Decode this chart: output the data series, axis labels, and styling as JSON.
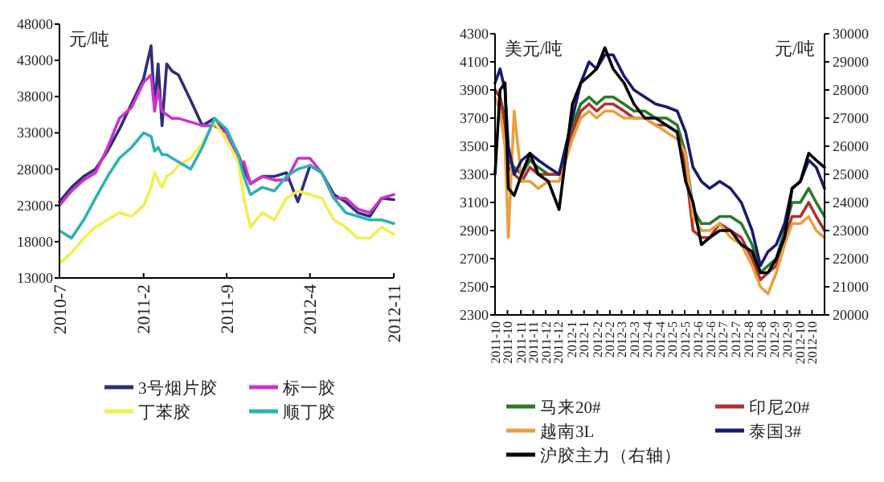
{
  "chart_data": [
    {
      "type": "line",
      "ylabel": "元/吨",
      "legend": "bottom",
      "x": [
        "2010-07-01",
        "2010-08-01",
        "2010-09-01",
        "2010-10-01",
        "2010-11-01",
        "2010-12-01",
        "2011-01-01",
        "2011-02-01",
        "2011-02-20",
        "2011-03-01",
        "2011-03-10",
        "2011-03-20",
        "2011-04-01",
        "2011-04-15",
        "2011-05-01",
        "2011-06-01",
        "2011-07-01",
        "2011-08-01",
        "2011-09-01",
        "2011-10-01",
        "2011-10-15",
        "2011-11-01",
        "2011-12-01",
        "2012-01-01",
        "2012-02-01",
        "2012-03-01",
        "2012-04-01",
        "2012-05-01",
        "2012-06-01",
        "2012-07-01",
        "2012-08-01",
        "2012-09-01",
        "2012-10-01",
        "2012-11-01"
      ],
      "xlim": [
        "2010-07-01",
        "2012-11-01"
      ],
      "xticks": [
        {
          "value": "2010-07-01",
          "label": "2010-7"
        },
        {
          "value": "2011-02-01",
          "label": "2011-2"
        },
        {
          "value": "2011-09-01",
          "label": "2011-9"
        },
        {
          "value": "2012-04-01",
          "label": "2012-4"
        },
        {
          "value": "2012-11-01",
          "label": "2012-11"
        }
      ],
      "ylim": [
        13000,
        48000
      ],
      "yticks": [
        13000,
        18000,
        23000,
        28000,
        33000,
        38000,
        43000,
        48000
      ],
      "series": [
        {
          "name": "3号烟片胶",
          "color": "#2e2e78",
          "values": [
            23500,
            25500,
            27000,
            28000,
            30500,
            33500,
            37000,
            40500,
            45000,
            36500,
            42500,
            34000,
            42500,
            41500,
            41000,
            37500,
            34000,
            35000,
            33000,
            30000,
            28000,
            26000,
            27000,
            27000,
            27500,
            23500,
            28500,
            27500,
            24500,
            23500,
            22000,
            21500,
            24000,
            23800
          ]
        },
        {
          "name": "标一胶",
          "color": "#cc33cc",
          "values": [
            23000,
            25000,
            26500,
            27500,
            31000,
            35000,
            36500,
            40000,
            41000,
            36000,
            39000,
            36000,
            35500,
            35000,
            35000,
            34500,
            34000,
            34000,
            33000,
            29000,
            29000,
            26000,
            27000,
            26500,
            26500,
            29500,
            29500,
            27500,
            24000,
            24000,
            22500,
            22000,
            24000,
            24500
          ]
        },
        {
          "name": "丁苯胶",
          "color": "#f0f050",
          "values": [
            15000,
            16500,
            18500,
            20000,
            21000,
            22000,
            21500,
            23000,
            25500,
            27500,
            26500,
            25500,
            27000,
            27500,
            28500,
            29500,
            31500,
            34500,
            32000,
            29000,
            24000,
            20000,
            22000,
            21000,
            24000,
            25000,
            24500,
            24000,
            21000,
            20000,
            18500,
            18500,
            20000,
            19000
          ]
        },
        {
          "name": "顺丁胶",
          "color": "#33b0b0",
          "values": [
            19500,
            18500,
            21000,
            24000,
            27000,
            29500,
            31000,
            33000,
            32500,
            30500,
            31000,
            30000,
            30000,
            29500,
            29000,
            28000,
            31000,
            35000,
            33500,
            30000,
            27000,
            24500,
            25500,
            25000,
            27000,
            28000,
            28500,
            27500,
            24000,
            22000,
            21500,
            21000,
            21000,
            20500
          ]
        }
      ]
    },
    {
      "type": "line",
      "ylabel": "美元/吨",
      "y2label": "元/吨",
      "legend": "bottom",
      "x": [
        "2011-10-01",
        "2011-10-07",
        "2011-10-13",
        "2011-10-17",
        "2011-10-24",
        "2011-11-02",
        "2011-11-12",
        "2011-11-22",
        "2011-12-04",
        "2011-12-17",
        "2012-01-02",
        "2012-01-12",
        "2012-01-22",
        "2012-01-31",
        "2012-02-10",
        "2012-02-20",
        "2012-03-04",
        "2012-03-16",
        "2012-03-29",
        "2012-04-11",
        "2012-04-24",
        "2012-05-07",
        "2012-05-17",
        "2012-05-26",
        "2012-06-05",
        "2012-06-15",
        "2012-06-27",
        "2012-07-10",
        "2012-07-23",
        "2012-08-05",
        "2012-08-15",
        "2012-08-24",
        "2012-09-03",
        "2012-09-13",
        "2012-09-22",
        "2012-10-02",
        "2012-10-12",
        "2012-10-21",
        "2012-10-31"
      ],
      "xlim": [
        "2011-10-01",
        "2012-10-31"
      ],
      "xticks": [
        {
          "value": "2011-10-01",
          "label": "2011-10"
        },
        {
          "value": "2011-10-16",
          "label": "2011-10"
        },
        {
          "value": "2011-11-01",
          "label": "2011-11"
        },
        {
          "value": "2011-11-16",
          "label": "2011-11"
        },
        {
          "value": "2011-12-01",
          "label": "2011-12"
        },
        {
          "value": "2011-12-16",
          "label": "2011-12"
        },
        {
          "value": "2012-01-01",
          "label": "2012-1"
        },
        {
          "value": "2012-01-16",
          "label": "2012-1"
        },
        {
          "value": "2012-02-01",
          "label": "2012-2"
        },
        {
          "value": "2012-02-16",
          "label": "2012-2"
        },
        {
          "value": "2012-03-01",
          "label": "2012-3"
        },
        {
          "value": "2012-03-16",
          "label": "2012-3"
        },
        {
          "value": "2012-04-01",
          "label": "2012-4"
        },
        {
          "value": "2012-04-16",
          "label": "2012-4"
        },
        {
          "value": "2012-05-01",
          "label": "2012-5"
        },
        {
          "value": "2012-05-16",
          "label": "2012-5"
        },
        {
          "value": "2012-06-01",
          "label": "2012-6"
        },
        {
          "value": "2012-06-16",
          "label": "2012-6"
        },
        {
          "value": "2012-07-01",
          "label": "2012-7"
        },
        {
          "value": "2012-07-16",
          "label": "2012-7"
        },
        {
          "value": "2012-08-01",
          "label": "2012-8"
        },
        {
          "value": "2012-08-16",
          "label": "2012-8"
        },
        {
          "value": "2012-09-01",
          "label": "2012-9"
        },
        {
          "value": "2012-09-16",
          "label": "2012-9"
        },
        {
          "value": "2012-10-01",
          "label": "2012-10"
        },
        {
          "value": "2012-10-16",
          "label": "2012-10"
        }
      ],
      "ylim": [
        2300,
        4300
      ],
      "yticks": [
        2300,
        2500,
        2700,
        2900,
        3100,
        3300,
        3500,
        3700,
        3900,
        4100,
        4300
      ],
      "y2lim": [
        20000,
        30000
      ],
      "y2ticks": [
        20000,
        21000,
        22000,
        23000,
        24000,
        25000,
        26000,
        27000,
        28000,
        29000,
        30000
      ],
      "series": [
        {
          "name": "马来20#",
          "color": "#2a7a2a",
          "values": [
            3900,
            3850,
            3700,
            3400,
            3350,
            3300,
            3400,
            3350,
            3300,
            3300,
            3650,
            3800,
            3850,
            3800,
            3850,
            3850,
            3800,
            3750,
            3750,
            3700,
            3700,
            3650,
            3450,
            3050,
            2950,
            2950,
            3000,
            3000,
            2950,
            2800,
            2600,
            2650,
            2700,
            2900,
            3100,
            3100,
            3200,
            3100,
            3000
          ]
        },
        {
          "name": "印尼20#",
          "color": "#b03030",
          "values": [
            3900,
            3850,
            3650,
            3350,
            3300,
            3250,
            3350,
            3300,
            3300,
            3300,
            3600,
            3750,
            3800,
            3750,
            3800,
            3800,
            3750,
            3700,
            3700,
            3650,
            3650,
            3600,
            3350,
            2900,
            2850,
            2850,
            2950,
            2900,
            2850,
            2700,
            2550,
            2600,
            2650,
            2850,
            3000,
            3000,
            3100,
            3000,
            2900
          ]
        },
        {
          "name": "越南3L",
          "color": "#e8a040",
          "values": [
            3850,
            3750,
            3500,
            2850,
            3750,
            3250,
            3250,
            3200,
            3250,
            3250,
            3550,
            3700,
            3750,
            3700,
            3750,
            3750,
            3700,
            3700,
            3700,
            3650,
            3600,
            3550,
            3450,
            3000,
            2900,
            2900,
            2950,
            2850,
            2800,
            2650,
            2500,
            2450,
            2600,
            2800,
            2950,
            2950,
            3000,
            2900,
            2850
          ]
        },
        {
          "name": "泰国3#",
          "color": "#1a1a70",
          "values": [
            3950,
            4050,
            3900,
            3500,
            3300,
            3400,
            3450,
            3400,
            3350,
            3300,
            3700,
            3950,
            4100,
            4050,
            4150,
            4150,
            4000,
            3900,
            3850,
            3800,
            3780,
            3750,
            3600,
            3350,
            3250,
            3200,
            3250,
            3200,
            3100,
            2900,
            2650,
            2750,
            2800,
            2950,
            3200,
            3250,
            3400,
            3350,
            3200
          ]
        },
        {
          "name": "沪胶主力（右轴）",
          "color": "#000000",
          "axis": "y2",
          "values": [
            25000,
            28000,
            28250,
            24500,
            24250,
            25000,
            25750,
            25000,
            24750,
            23750,
            27500,
            28250,
            28500,
            28750,
            29500,
            28750,
            28250,
            27500,
            27000,
            27000,
            26750,
            26500,
            24750,
            24000,
            22500,
            22750,
            23000,
            23000,
            22500,
            22250,
            21500,
            21500,
            22000,
            22750,
            24500,
            24750,
            25750,
            25500,
            25250
          ]
        }
      ]
    }
  ]
}
